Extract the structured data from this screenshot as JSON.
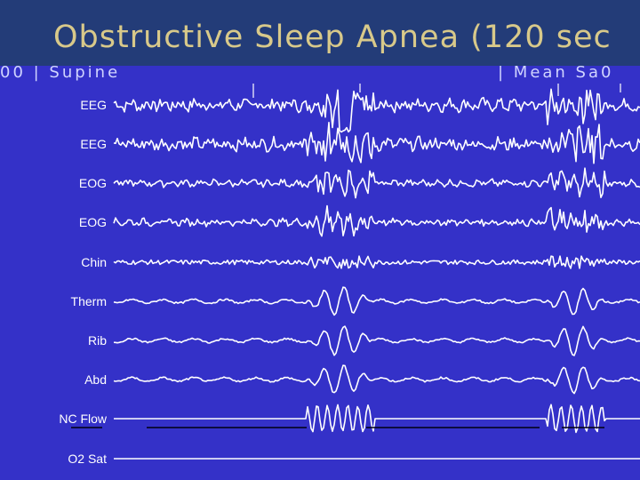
{
  "title": "Obstructive Sleep Apnea (120 sec",
  "header": {
    "left_text": "00 | Supine",
    "right_text": "| Mean Sa0"
  },
  "channels": [
    {
      "label": "EEG"
    },
    {
      "label": "EEG"
    },
    {
      "label": "EOG"
    },
    {
      "label": "EOG"
    },
    {
      "label": "Chin"
    },
    {
      "label": "Therm"
    },
    {
      "label": "Rib"
    },
    {
      "label": "Abd"
    },
    {
      "label": "NC Flow"
    },
    {
      "label": "O2 Sat"
    }
  ],
  "colors": {
    "background": "#3431c8",
    "title_bar": "#233c78",
    "title_text": "#d8c98a",
    "trace": "#ffffff"
  }
}
